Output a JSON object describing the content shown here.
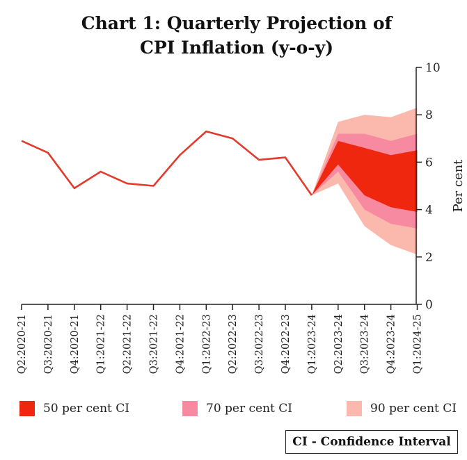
{
  "chart_data": {
    "type": "line",
    "title_line1": "Chart 1: Quarterly Projection of",
    "title_line2": "CPI Inflation (y-o-y)",
    "ylabel": "Per cent",
    "ylim": [
      0,
      10
    ],
    "yticks": [
      0,
      2,
      4,
      6,
      8,
      10
    ],
    "categories": [
      "Q2:2020-21",
      "Q3:2020-21",
      "Q4:2020-21",
      "Q1:2021-22",
      "Q2:2021-22",
      "Q3:2021-22",
      "Q4:2021-22",
      "Q1:2022-23",
      "Q2:2022-23",
      "Q3:2022-23",
      "Q4:2022-23",
      "Q1:2023-24",
      "Q2:2023-24",
      "Q3:2023-24",
      "Q4:2023-24",
      "Q1:2024-25"
    ],
    "series": [
      {
        "values": [
          6.9,
          6.4,
          4.9,
          5.6,
          5.1,
          5.0,
          6.3,
          7.3,
          7.0,
          6.1,
          6.2,
          4.6,
          null,
          null,
          null,
          null
        ]
      }
    ],
    "fan": {
      "start_index": 11,
      "start_value": 4.6,
      "ci90": {
        "upper": [
          7.7,
          8.0,
          7.9,
          8.3
        ],
        "lower": [
          5.1,
          3.3,
          2.5,
          2.1
        ]
      },
      "ci70": {
        "upper": [
          7.2,
          7.2,
          6.9,
          7.2
        ],
        "lower": [
          5.6,
          4.0,
          3.4,
          3.2
        ]
      },
      "ci50": {
        "upper": [
          6.9,
          6.6,
          6.3,
          6.5
        ],
        "lower": [
          5.9,
          4.6,
          4.1,
          3.9
        ]
      }
    },
    "colors": {
      "line": "#e23a2c",
      "ci50": "#f0270f",
      "ci70": "#f78aa0",
      "ci90": "#fbb9ae",
      "axis": "#222222"
    },
    "legend": [
      {
        "label": "50 per cent CI",
        "color": "#f0270f"
      },
      {
        "label": "70 per cent CI",
        "color": "#f78aa0"
      },
      {
        "label": "90 per cent CI",
        "color": "#fbb9ae"
      }
    ],
    "legend_placement": "bottom",
    "note": "CI - Confidence Interval",
    "grid": false
  }
}
